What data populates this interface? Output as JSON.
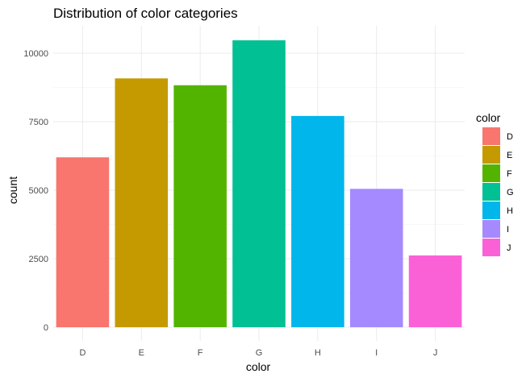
{
  "chart_data": {
    "type": "bar",
    "title": "Distribution of color categories",
    "xlabel": "color",
    "ylabel": "count",
    "categories": [
      "D",
      "E",
      "F",
      "G",
      "H",
      "I",
      "J"
    ],
    "values": [
      6200,
      9080,
      8830,
      10470,
      7710,
      5050,
      2620
    ],
    "colors": [
      "#F8766D",
      "#C49A00",
      "#53B400",
      "#00C094",
      "#00B6EB",
      "#A58AFF",
      "#FB61D7"
    ],
    "ylim": [
      0,
      11000
    ],
    "yticks": [
      0,
      2500,
      5000,
      7500,
      10000
    ],
    "ytick_labels": [
      "0",
      "2500",
      "5000",
      "7500",
      "10000"
    ],
    "grid": true,
    "legend": {
      "title": "color",
      "position": "right",
      "entries": [
        "D",
        "E",
        "F",
        "G",
        "H",
        "I",
        "J"
      ]
    }
  }
}
